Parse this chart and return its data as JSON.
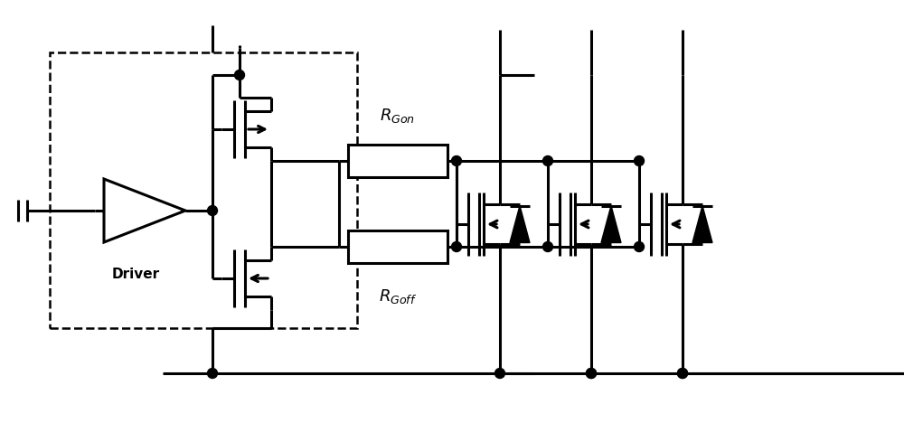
{
  "bg_color": "#ffffff",
  "line_color": "#000000",
  "lw": 2.2,
  "fig_width": 10.0,
  "fig_height": 4.68,
  "dpi": 100,
  "xlim": [
    0,
    100
  ],
  "ylim": [
    0,
    46.8
  ],
  "rgon_label": "$R_{Gon}$",
  "rgoff_label": "$R_{Goff}$",
  "driver_label": "Driver",
  "driver_fontsize": 11,
  "label_fontsize": 13
}
